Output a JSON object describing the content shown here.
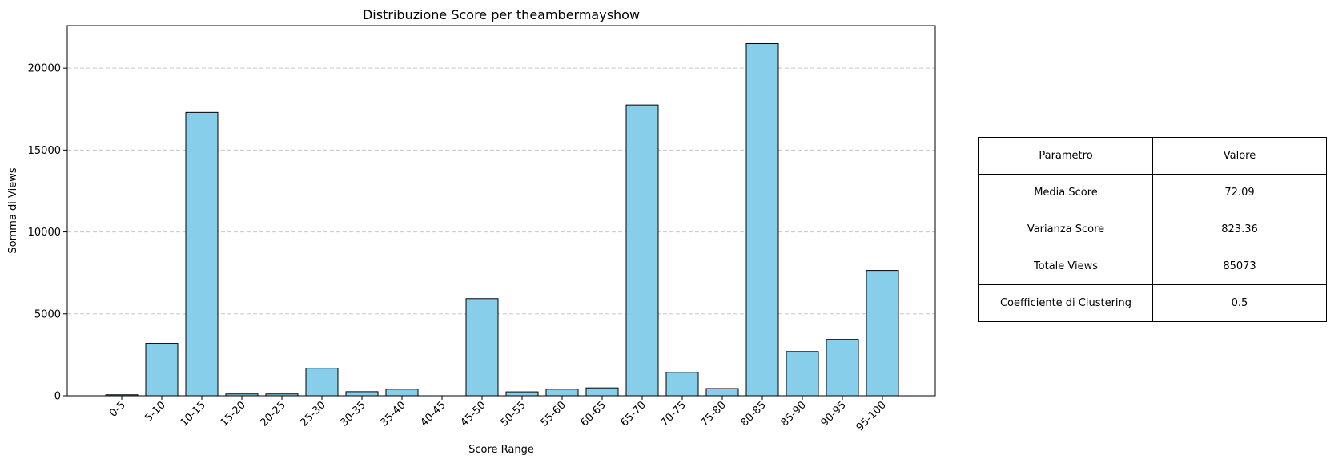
{
  "chart_data": {
    "type": "bar",
    "title": "Distribuzione Score per theambermayshow",
    "xlabel": "Score Range",
    "ylabel": "Somma di Views",
    "categories": [
      "0-5",
      "5-10",
      "10-15",
      "15-20",
      "20-25",
      "25-30",
      "30-35",
      "35-40",
      "40-45",
      "45-50",
      "50-55",
      "55-60",
      "60-65",
      "65-70",
      "70-75",
      "75-80",
      "80-85",
      "85-90",
      "90-95",
      "95-100"
    ],
    "values": [
      60,
      3200,
      17300,
      110,
      110,
      1680,
      250,
      400,
      0,
      5930,
      240,
      400,
      480,
      17750,
      1430,
      440,
      21500,
      2700,
      3440,
      7650
    ],
    "ylim": [
      0,
      22600
    ],
    "yticks": [
      0,
      5000,
      10000,
      15000,
      20000
    ],
    "grid": "y-dashed",
    "colors": {
      "bar_fill": "#87ceeb",
      "bar_edge": "#000000",
      "grid": "#c8c8c8"
    }
  },
  "table": {
    "header": [
      "Parametro",
      "Valore"
    ],
    "rows": [
      [
        "Media Score",
        "72.09"
      ],
      [
        "Varianza Score",
        "823.36"
      ],
      [
        "Totale Views",
        "85073"
      ],
      [
        "Coefficiente di Clustering",
        "0.5"
      ]
    ]
  }
}
